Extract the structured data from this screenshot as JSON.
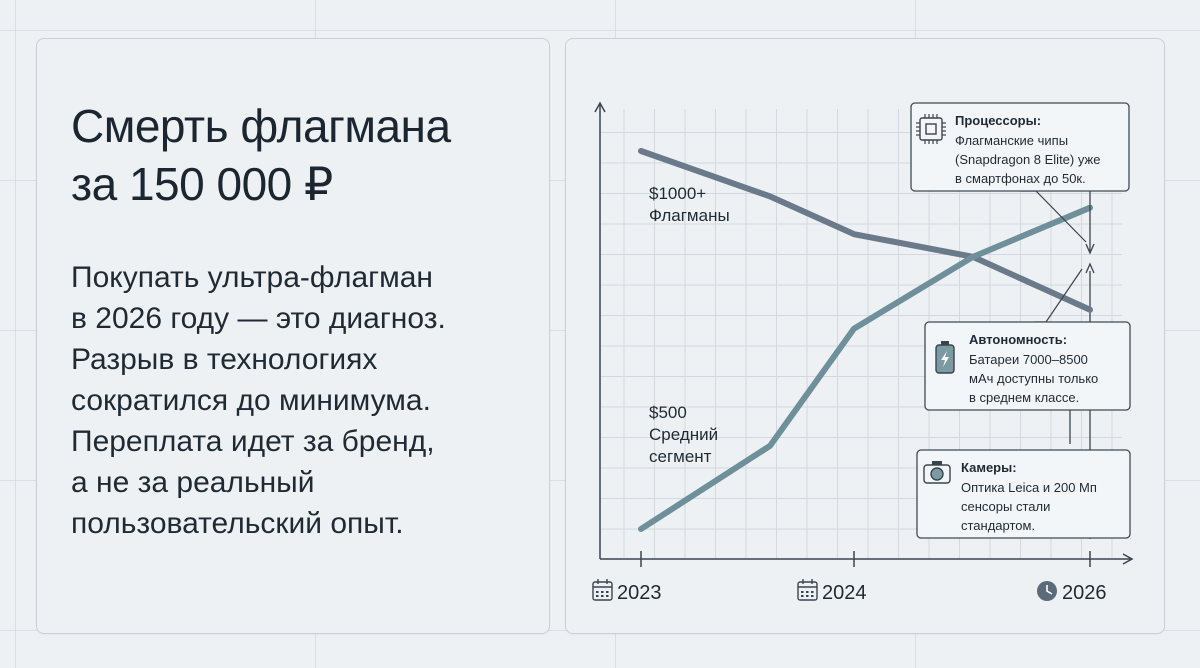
{
  "left": {
    "title_lines": [
      "Смерть флагмана",
      "за 150 000 ₽"
    ],
    "body_lines": [
      "Покупать ультра-флагман",
      "в 2026 году — это диагноз.",
      "Разрыв в технологиях",
      "сократился до минимума.",
      "Переплата идет за бренд,",
      "а не за реальный",
      "пользовательский опыт."
    ]
  },
  "chart_data": {
    "type": "line",
    "x": [
      "2023",
      "2023.5",
      "2024",
      "2025",
      "2026"
    ],
    "x_tick_labels": [
      "2023",
      "2024",
      "2026"
    ],
    "series": [
      {
        "name": "$1000+ Флагманы",
        "label_lines": [
          "$1000+",
          "Флагманы"
        ],
        "values": [
          100,
          88,
          78,
          72,
          58
        ],
        "color": "#6b7a8a"
      },
      {
        "name": "$500 Средний сегмент",
        "label_lines": [
          "$500",
          "Средний",
          "сегмент"
        ],
        "values": [
          0,
          22,
          53,
          72,
          85
        ],
        "color": "#6f909a"
      }
    ],
    "grid": true,
    "callouts": [
      {
        "icon": "cpu-icon",
        "title": "Процессоры:",
        "lines": [
          "Флагманские чипы",
          "(Snapdragon 8 Elite) уже",
          "в смартфонах до 50к."
        ]
      },
      {
        "icon": "battery-icon",
        "title": "Автономность:",
        "lines": [
          "Батареи 7000–8500",
          "мАч доступны только",
          "в среднем классе."
        ]
      },
      {
        "icon": "camera-icon",
        "title": "Камеры:",
        "lines": [
          "Оптика Leica и 200 Мп",
          "сенсоры стали",
          "стандартом."
        ]
      }
    ]
  },
  "colors": {
    "flagship_line": "#6b7a8a",
    "mid_line": "#6f909a",
    "grid": "#d3d9df",
    "axis": "#3a4450",
    "text": "#1f2a34"
  }
}
